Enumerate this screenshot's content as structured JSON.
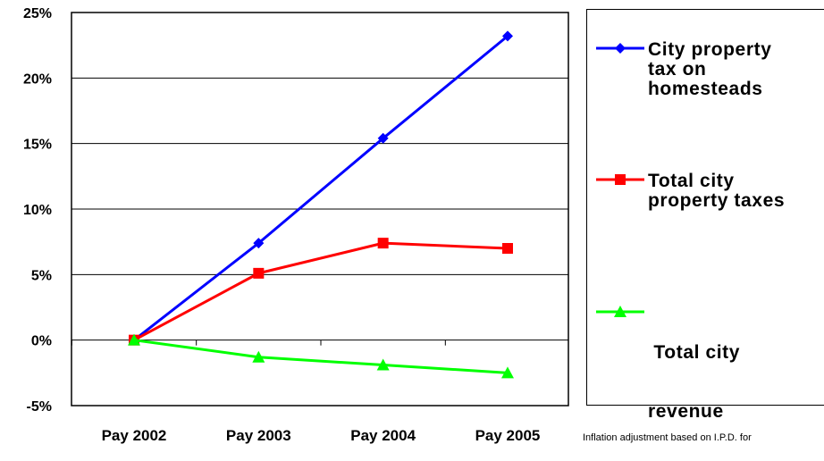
{
  "chart_data": {
    "type": "line",
    "categories": [
      "Pay 2002",
      "Pay 2003",
      "Pay 2004",
      "Pay 2005"
    ],
    "y_tick_labels": [
      "25%",
      "20%",
      "15%",
      "10%",
      "5%",
      "0%",
      "-5%"
    ],
    "y_ticks": [
      25,
      20,
      15,
      10,
      5,
      0,
      -5
    ],
    "ylim": [
      -5,
      25
    ],
    "grid": true,
    "legend_position": "right",
    "series": [
      {
        "name": "City property tax on homesteads",
        "values": [
          0,
          7.4,
          15.4,
          23.2
        ],
        "color": "#0000ff",
        "marker": "diamond"
      },
      {
        "name": "Total city property taxes",
        "values": [
          0,
          5.1,
          7.4,
          7.0
        ],
        "color": "#ff0000",
        "marker": "square"
      },
      {
        "name": "Total city revenue",
        "values": [
          0,
          -1.3,
          -1.9,
          -2.5
        ],
        "color": "#00ff00",
        "marker": "triangle"
      }
    ]
  },
  "legend": {
    "items": [
      {
        "label_lines": [
          "City property",
          "tax on",
          "homesteads"
        ]
      },
      {
        "label_lines": [
          "Total city",
          "property taxes"
        ]
      },
      {
        "label_lines": [
          " Total city",
          "revenue"
        ]
      }
    ]
  },
  "footnote": "Inflation adjustment based on I.P.D. for"
}
